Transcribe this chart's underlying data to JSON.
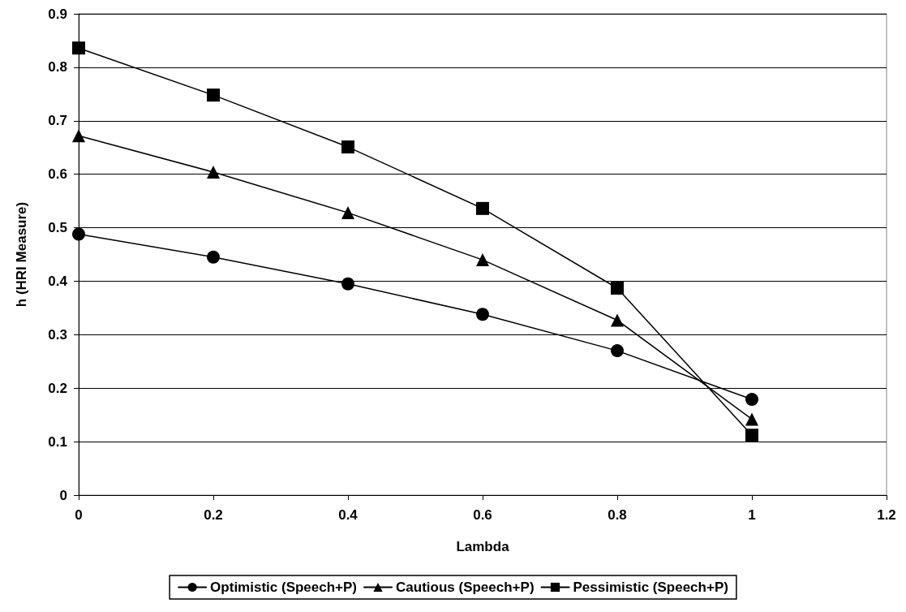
{
  "chart_data": {
    "type": "line",
    "xlabel": "Lambda",
    "ylabel": "h (HRI Measure)",
    "x": [
      0,
      0.2,
      0.4,
      0.6,
      0.8,
      1
    ],
    "series": [
      {
        "name": "Optimistic (Speech+P)",
        "color": "#000000",
        "marker": "circle",
        "values": [
          0.488,
          0.445,
          0.395,
          0.338,
          0.27,
          0.179
        ]
      },
      {
        "name": "Cautious (Speech+P)",
        "color": "#000000",
        "marker": "triangle",
        "values": [
          0.672,
          0.604,
          0.528,
          0.44,
          0.327,
          0.142
        ]
      },
      {
        "name": "Pessimistic (Speech+P)",
        "color": "#000000",
        "marker": "square",
        "values": [
          0.836,
          0.748,
          0.651,
          0.536,
          0.387,
          0.112
        ]
      }
    ],
    "xlim": [
      0,
      1.2
    ],
    "xticks": [
      0,
      0.2,
      0.4,
      0.6,
      0.8,
      1,
      1.2
    ],
    "ylim": [
      0,
      0.9
    ],
    "yticks": [
      0,
      0.1,
      0.2,
      0.3,
      0.4,
      0.5,
      0.6,
      0.7,
      0.8,
      0.9
    ],
    "grid": "y",
    "legend": "bottom",
    "line_style": "solid"
  }
}
